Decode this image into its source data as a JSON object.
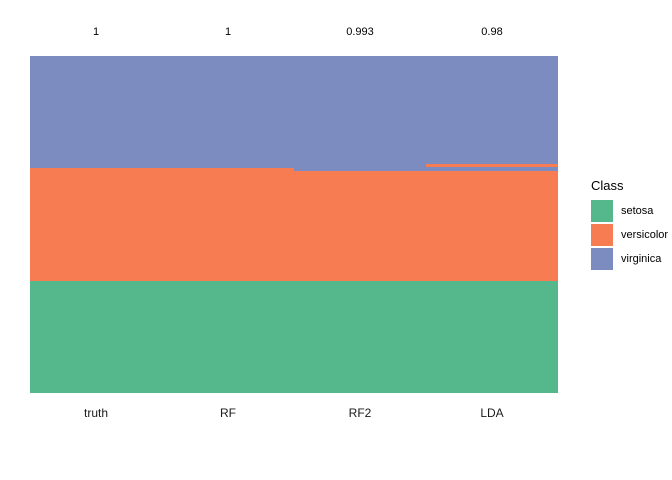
{
  "chart_data": {
    "type": "heatmap",
    "title": "",
    "description": "Per-sample class membership plot: 150 samples (rows, grouped by true class) versus truth and three classifiers (columns). Band colors give the assigned class; thin stripes mark misclassified samples. Numbers above columns are accuracies.",
    "x_categories": [
      "truth",
      "RF",
      "RF2",
      "LDA"
    ],
    "accuracy_values": [
      1,
      1,
      0.993,
      0.98
    ],
    "grid": false,
    "legend_position": "right",
    "classes": [
      {
        "name": "setosa",
        "color": "#55B78C"
      },
      {
        "name": "versicolor",
        "color": "#F87C52"
      },
      {
        "name": "virginica",
        "color": "#7D8CC0"
      }
    ],
    "columns": [
      {
        "label": "truth",
        "accuracy_label": "1",
        "segments": [
          {
            "class": "virginica",
            "frac": 0.3333
          },
          {
            "class": "versicolor",
            "frac": 0.3334
          },
          {
            "class": "setosa",
            "frac": 0.3333
          }
        ]
      },
      {
        "label": "RF",
        "accuracy_label": "1",
        "segments": [
          {
            "class": "virginica",
            "frac": 0.3333
          },
          {
            "class": "versicolor",
            "frac": 0.3334
          },
          {
            "class": "setosa",
            "frac": 0.3333
          }
        ]
      },
      {
        "label": "RF2",
        "accuracy_label": "0.993",
        "segments": [
          {
            "class": "virginica",
            "frac": 0.3401
          },
          {
            "class": "versicolor",
            "frac": 0.3266
          },
          {
            "class": "setosa",
            "frac": 0.3333
          }
        ]
      },
      {
        "label": "LDA",
        "accuracy_label": "0.98",
        "segments": [
          {
            "class": "virginica",
            "frac": 0.3205
          },
          {
            "class": "versicolor",
            "frac": 0.0089
          },
          {
            "class": "virginica",
            "frac": 0.0119
          },
          {
            "class": "versicolor",
            "frac": 0.3254
          },
          {
            "class": "setosa",
            "frac": 0.3333
          }
        ]
      }
    ],
    "legend": {
      "title": "Class",
      "entries": [
        "setosa",
        "versicolor",
        "virginica"
      ]
    }
  }
}
